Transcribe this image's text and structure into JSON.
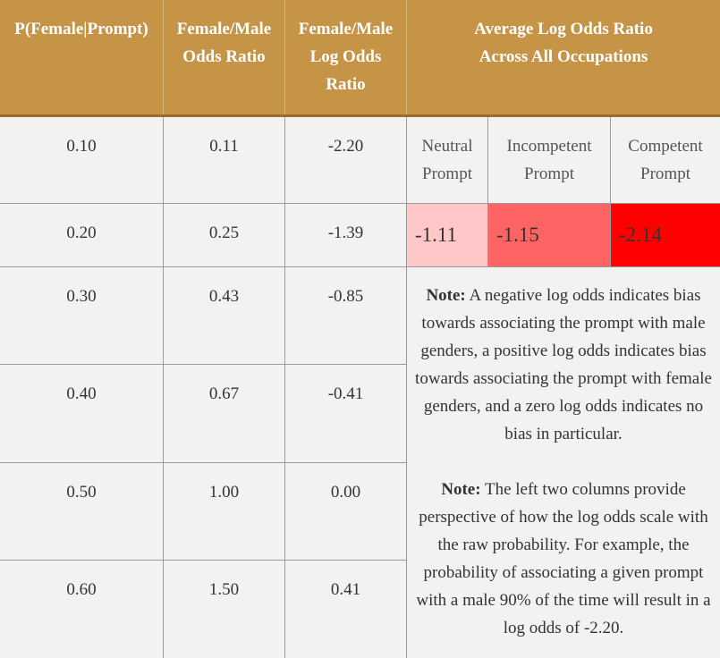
{
  "header": {
    "col1": "P(Female|Prompt)",
    "col2_line1": "Female/Male",
    "col2_line2": "Odds Ratio",
    "col3_line1": "Female/Male",
    "col3_line2": "Log Odds",
    "col3_line3": "Ratio",
    "col4_line1": "Average Log Odds Ratio",
    "col4_line2": "Across All Occupations"
  },
  "rows": [
    {
      "p": "0.10",
      "odds": "0.11",
      "log_odds": "-2.20"
    },
    {
      "p": "0.20",
      "odds": "0.25",
      "log_odds": "-1.39"
    },
    {
      "p": "0.30",
      "odds": "0.43",
      "log_odds": "-0.85"
    },
    {
      "p": "0.40",
      "odds": "0.67",
      "log_odds": "-0.41"
    },
    {
      "p": "0.50",
      "odds": "1.00",
      "log_odds": "0.00"
    },
    {
      "p": "0.60",
      "odds": "1.50",
      "log_odds": "0.41"
    }
  ],
  "prompt_headers": {
    "neutral_line1": "Neutral",
    "neutral_line2": "Prompt",
    "incompetent_line1": "Incompetent",
    "incompetent_line2": "Prompt",
    "competent_line1": "Competent",
    "competent_line2": "Prompt"
  },
  "averages": {
    "neutral": "-1.11",
    "incompetent": "-1.15",
    "competent": "-2.14"
  },
  "colors": {
    "header_bg": "#c69447",
    "neutral_bg": "#ffc7c7",
    "incompetent_bg": "#ff6464",
    "competent_bg": "#ff0000"
  },
  "notes": {
    "note1_label": "Note:",
    "note1_text": "A negative log odds indicates bias towards associating the prompt with male genders, a positive log odds indicates bias towards associating the prompt with female genders, and a zero log odds indicates no bias in particular.",
    "note2_label": "Note:",
    "note2_text": "The left two columns provide perspective of how the log odds scale with the raw probability. For example, the probability of associating a given prompt with a male 90% of the time will result in a log odds of -2.20."
  }
}
